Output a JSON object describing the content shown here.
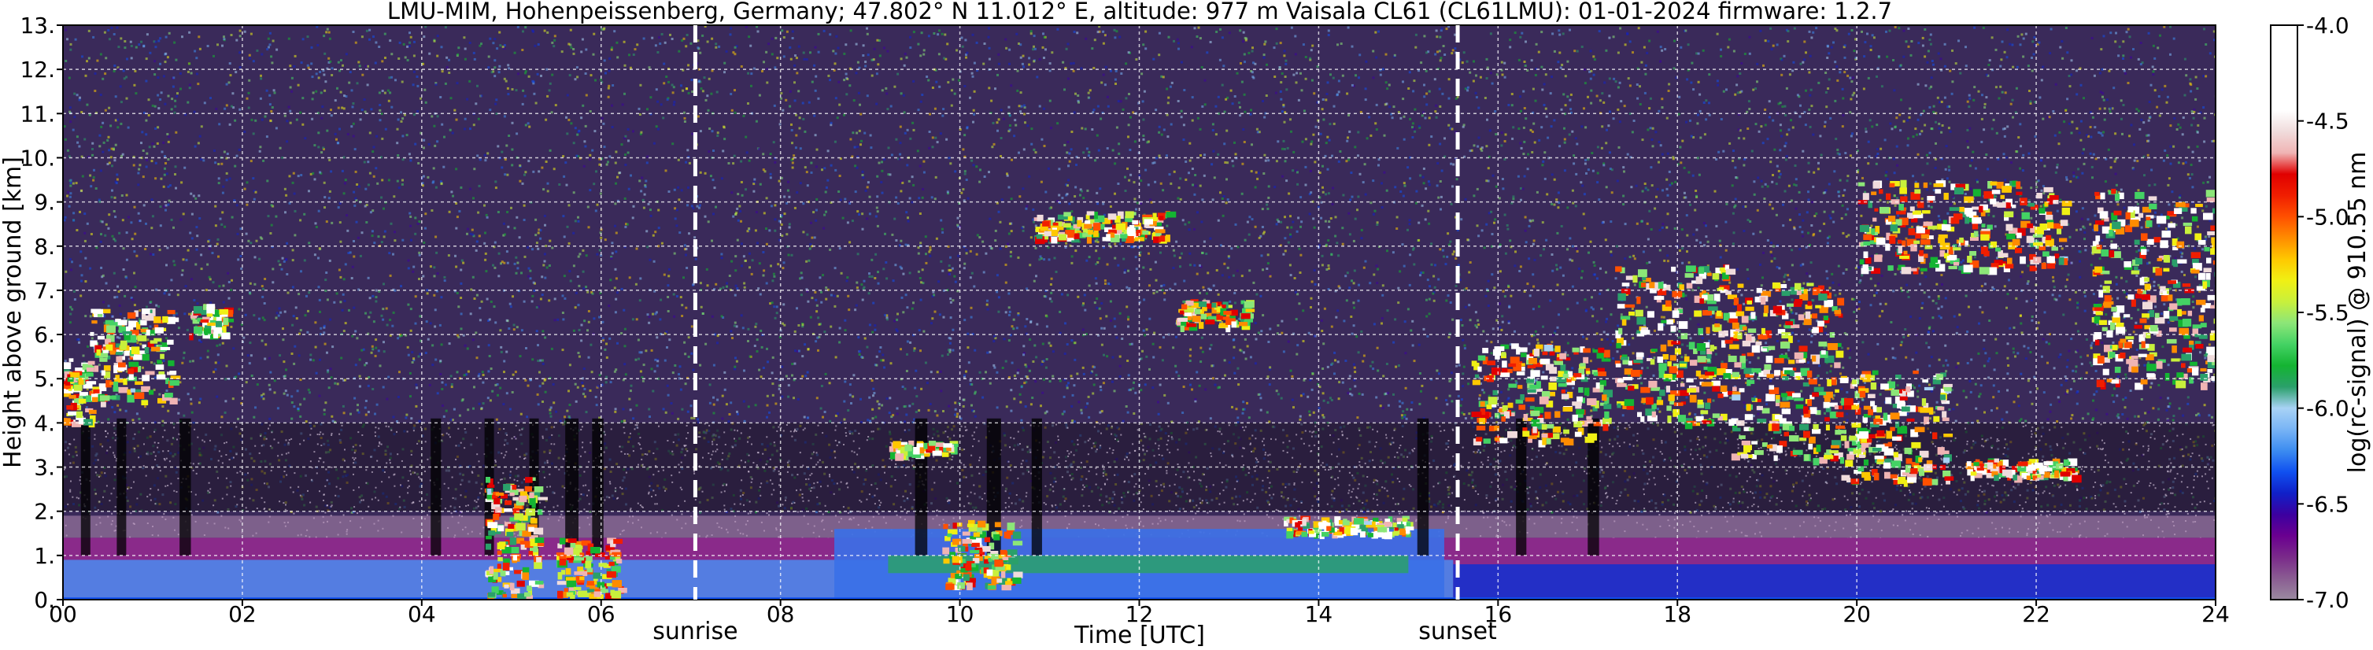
{
  "chart_data": {
    "type": "heatmap",
    "title": "LMU-MIM, Hohenpeissenberg, Germany; 47.802° N 11.012° E, altitude: 977 m    Vaisala CL61 (CL61LMU): 01-01-2024    firmware: 1.2.7",
    "xlabel": "Time [UTC]",
    "ylabel": "Height above ground [km]",
    "xlim": [
      0,
      24
    ],
    "ylim": [
      0,
      13
    ],
    "x_ticks": [
      "00",
      "02",
      "04",
      "06",
      "08",
      "10",
      "12",
      "14",
      "16",
      "18",
      "20",
      "22",
      "24"
    ],
    "y_ticks": [
      "0.",
      "1.",
      "2.",
      "3.",
      "4.",
      "5.",
      "6.",
      "7.",
      "8.",
      "9.",
      "10.",
      "11.",
      "12.",
      "13."
    ],
    "grid": true,
    "markers": [
      {
        "label": "sunrise",
        "x": 7.05
      },
      {
        "label": "sunset",
        "x": 15.55
      }
    ],
    "colorbar": {
      "label": "log(rc-signal) @ 910.55 nm",
      "range": [
        -7.0,
        -4.0
      ],
      "ticks": [
        "-4.0",
        "-4.5",
        "-5.0",
        "-5.5",
        "-6.0",
        "-6.5",
        "-7.0"
      ],
      "colors": [
        "#9a8aa0",
        "#8a5c92",
        "#7a2a8a",
        "#6a0090",
        "#3c00a0",
        "#1020c8",
        "#1050f0",
        "#3c8cf0",
        "#78b4f5",
        "#a8d2f5",
        "#2aa06a",
        "#14b432",
        "#44d264",
        "#8ce678",
        "#c8f03c",
        "#f0f014",
        "#ffc800",
        "#ff8c00",
        "#ff5000",
        "#f01e00",
        "#e00000",
        "#f0b4b4",
        "#f0dcdc",
        "#ffffff",
        "#ffffff",
        "#ffffff",
        "#ffffff",
        "#ffffff"
      ]
    },
    "layers": {
      "boundary_layer_top_km": 1.4,
      "noise_level_min_km": 2.0,
      "precipitation_streaks": [
        [
          0.2,
          1.0
        ],
        [
          0.6,
          1.0
        ],
        [
          1.3,
          1.2
        ],
        [
          4.1,
          1.1
        ],
        [
          4.7,
          1.0
        ],
        [
          5.2,
          1.0
        ],
        [
          5.6,
          1.4
        ],
        [
          5.9,
          1.2
        ],
        [
          9.5,
          1.3
        ],
        [
          10.3,
          1.5
        ],
        [
          10.8,
          1.1
        ],
        [
          15.1,
          1.2
        ],
        [
          16.2,
          1.1
        ],
        [
          17.0,
          1.2
        ]
      ],
      "cloud_features": [
        {
          "x0": 0.0,
          "x1": 0.3,
          "h0": 4.0,
          "h1": 5.5,
          "intensity": 0.9
        },
        {
          "x0": 0.3,
          "x1": 1.2,
          "h0": 4.5,
          "h1": 6.6,
          "intensity": 1.0
        },
        {
          "x0": 1.4,
          "x1": 1.8,
          "h0": 6.0,
          "h1": 6.7,
          "intensity": 0.9
        },
        {
          "x0": 4.7,
          "x1": 5.3,
          "h0": 0.1,
          "h1": 2.8,
          "intensity": 0.8
        },
        {
          "x0": 5.5,
          "x1": 6.2,
          "h0": 0.1,
          "h1": 1.4,
          "intensity": 0.7
        },
        {
          "x0": 9.2,
          "x1": 9.9,
          "h0": 3.3,
          "h1": 3.6,
          "intensity": 1.0
        },
        {
          "x0": 9.8,
          "x1": 10.6,
          "h0": 0.3,
          "h1": 1.8,
          "intensity": 0.8
        },
        {
          "x0": 10.8,
          "x1": 12.3,
          "h0": 8.2,
          "h1": 8.8,
          "intensity": 0.9
        },
        {
          "x0": 12.4,
          "x1": 13.2,
          "h0": 6.2,
          "h1": 6.8,
          "intensity": 0.8
        },
        {
          "x0": 13.6,
          "x1": 15.0,
          "h0": 1.5,
          "h1": 1.9,
          "intensity": 1.0
        },
        {
          "x0": 15.7,
          "x1": 17.2,
          "h0": 3.6,
          "h1": 5.8,
          "intensity": 0.9
        },
        {
          "x0": 17.3,
          "x1": 18.6,
          "h0": 4.0,
          "h1": 7.6,
          "intensity": 0.9
        },
        {
          "x0": 18.6,
          "x1": 19.8,
          "h0": 3.2,
          "h1": 7.2,
          "intensity": 0.9
        },
        {
          "x0": 19.8,
          "x1": 21.0,
          "h0": 2.7,
          "h1": 5.2,
          "intensity": 0.9
        },
        {
          "x0": 20.0,
          "x1": 22.3,
          "h0": 7.5,
          "h1": 9.5,
          "intensity": 0.9
        },
        {
          "x0": 21.2,
          "x1": 22.4,
          "h0": 2.8,
          "h1": 3.2,
          "intensity": 1.0
        },
        {
          "x0": 22.6,
          "x1": 24.0,
          "h0": 4.9,
          "h1": 9.3,
          "intensity": 1.0
        }
      ]
    }
  }
}
